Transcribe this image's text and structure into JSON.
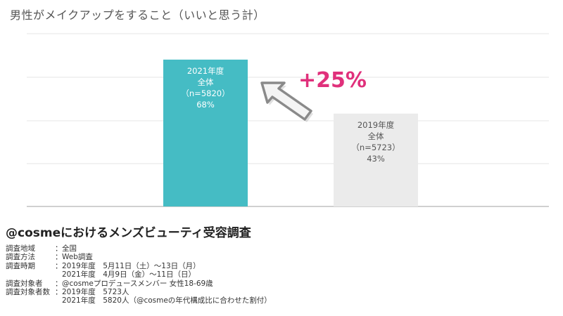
{
  "chart_data": {
    "type": "bar",
    "title": "男性がメイクアップをすること（いいと思う計）",
    "categories": [
      "2021年度",
      "2019年度"
    ],
    "values": [
      68,
      43
    ],
    "ylim": [
      0,
      80
    ],
    "grid": true,
    "bars": [
      {
        "year": "2021年度",
        "group": "全体",
        "n": "（n=5820）",
        "value_label": "68%",
        "color": "#45bcc4",
        "text_color": "#ffffff"
      },
      {
        "year": "2019年度",
        "group": "全体",
        "n": "（n=5723）",
        "value_label": "43%",
        "color": "#ebebeb",
        "text_color": "#555555"
      }
    ],
    "annotation": {
      "text": "+25%",
      "color": "#e0307b",
      "icon": "arrow-up-left-icon"
    }
  },
  "survey": {
    "title": "@cosmeにおけるメンズビューティ受容調査",
    "details": [
      {
        "label": "調査地域",
        "sep": "：",
        "values": [
          "全国"
        ]
      },
      {
        "label": "調査方法",
        "sep": "：",
        "values": [
          "Web調査"
        ]
      },
      {
        "label": "調査時期",
        "sep": "：",
        "values": [
          "2019年度　5月11日（土）〜13日（月）",
          "2021年度　4月9日（金）〜11日（日）"
        ]
      },
      {
        "label": "調査対象者",
        "sep": "：",
        "values": [
          "@cosmeプロデュースメンバー 女性18-69歳"
        ]
      },
      {
        "label": "調査対象者数",
        "sep": "：",
        "values": [
          "2019年度　5723人",
          "2021年度　5820人（@cosmeの年代構成比に合わせた割付）"
        ]
      }
    ]
  }
}
